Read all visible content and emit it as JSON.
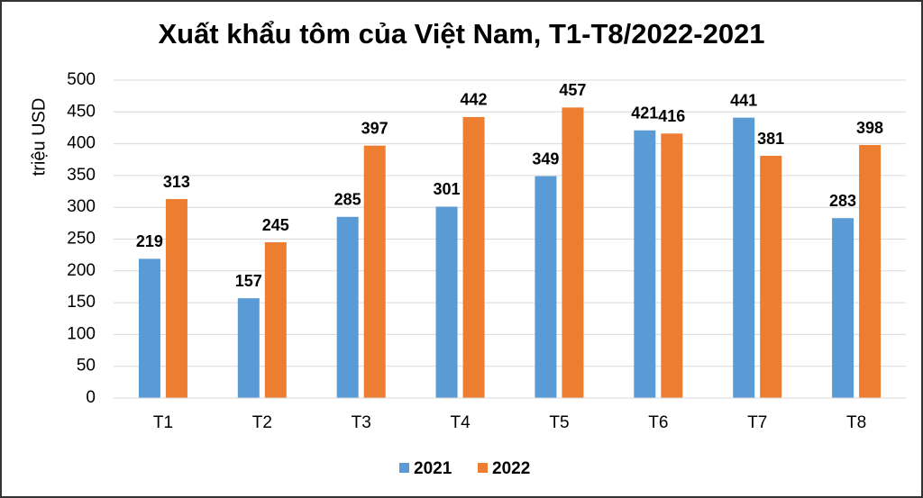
{
  "chart_data": {
    "type": "bar",
    "title": "Xuất khẩu tôm của Việt Nam, T1-T8/2022-2021",
    "y_label": "triệu USD",
    "categories": [
      "T1",
      "T2",
      "T3",
      "T4",
      "T5",
      "T6",
      "T7",
      "T8"
    ],
    "series": [
      {
        "name": "2021",
        "color": "#5b9bd5",
        "values": [
          219,
          157,
          285,
          301,
          349,
          421,
          441,
          283
        ]
      },
      {
        "name": "2022",
        "color": "#ed7d31",
        "values": [
          313,
          245,
          397,
          442,
          457,
          416,
          381,
          398
        ]
      }
    ],
    "ylim": [
      0,
      500
    ],
    "yticks": [
      0,
      50,
      100,
      150,
      200,
      250,
      300,
      350,
      400,
      450,
      500
    ],
    "grid": true,
    "legend": "bottom"
  }
}
